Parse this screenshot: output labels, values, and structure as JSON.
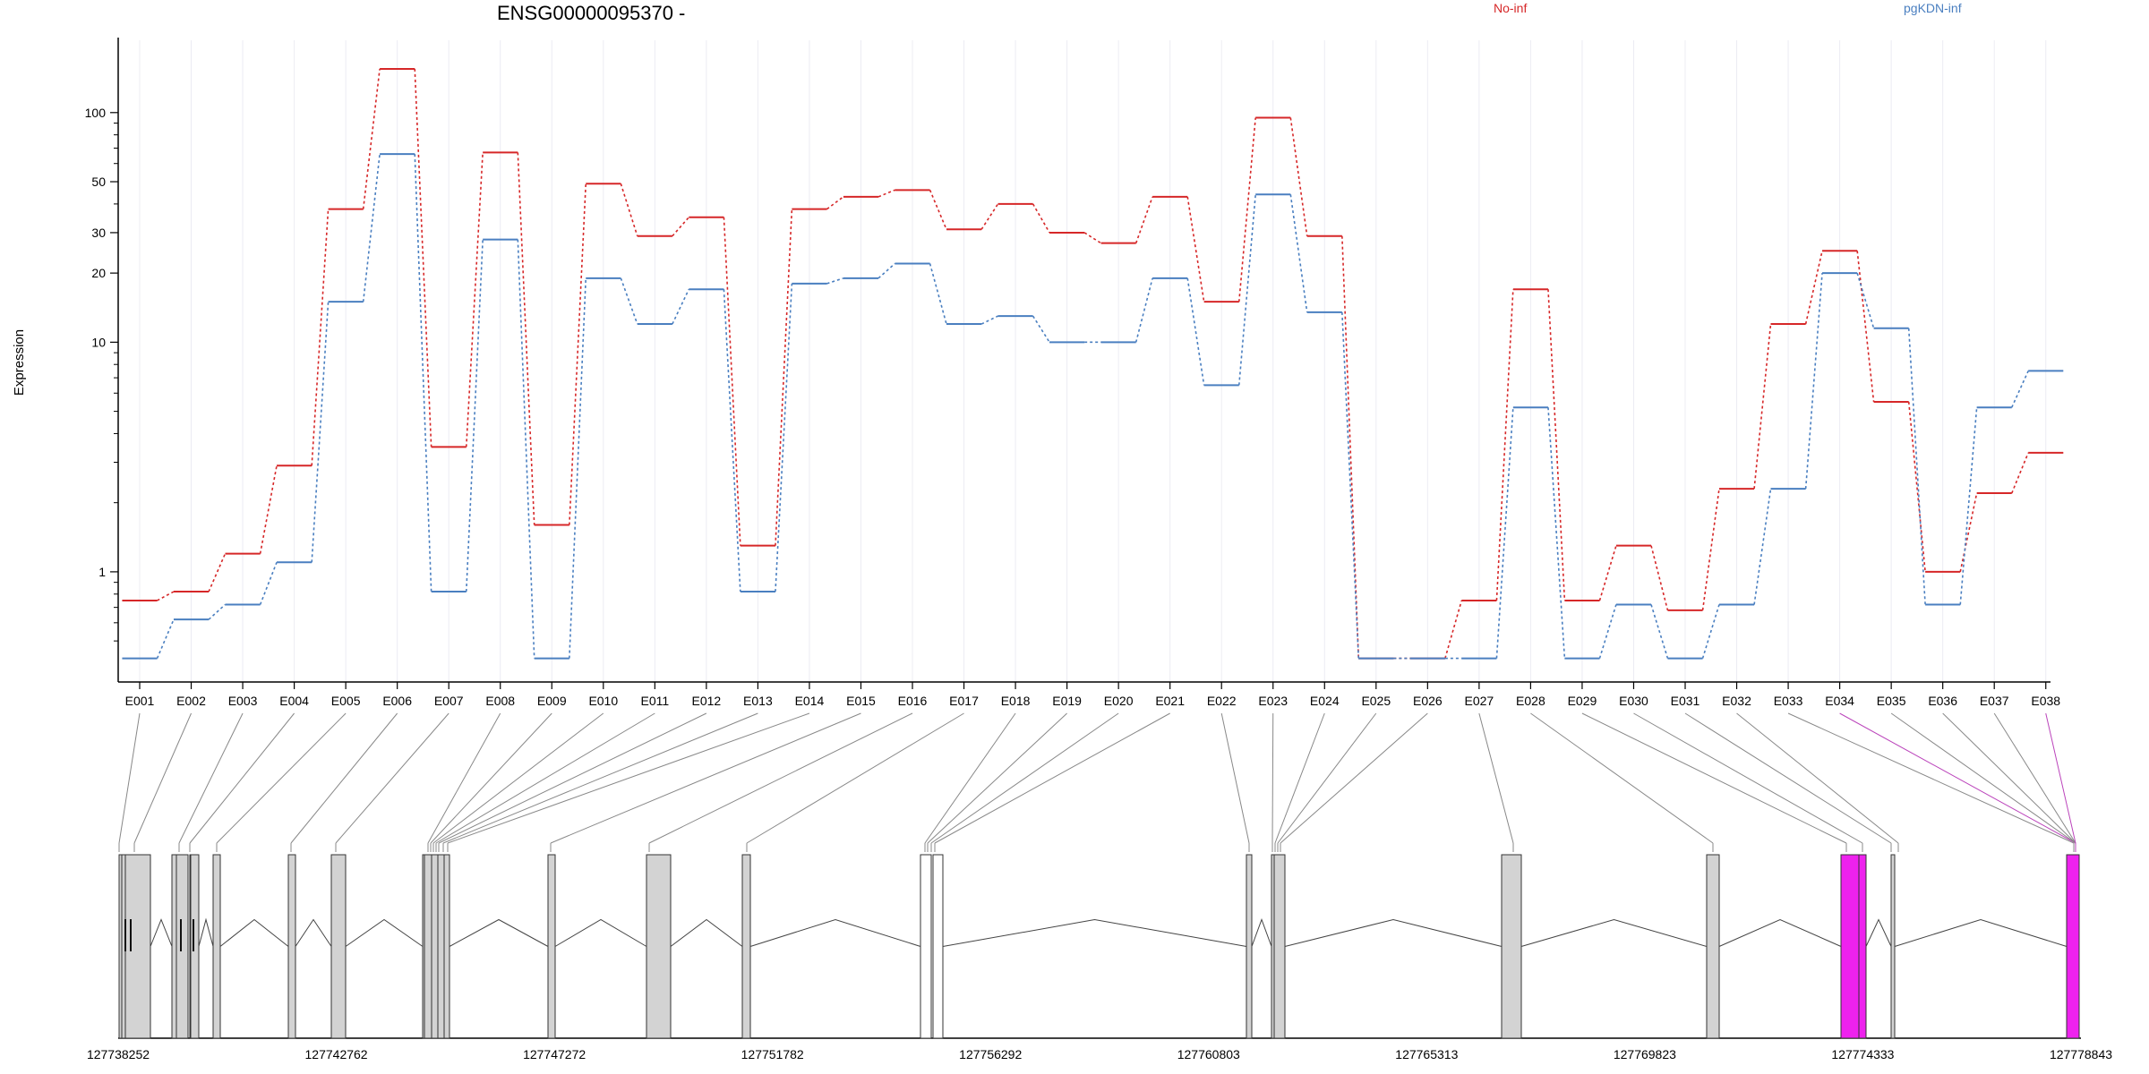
{
  "chart_data": {
    "type": "line",
    "title": "ENSG00000095370 -",
    "ylabel": "Expression",
    "yscale": "log",
    "ylim": [
      0.4,
      165
    ],
    "yticks": [
      1,
      10,
      20,
      30,
      50,
      100
    ],
    "ytick_labels": [
      "1",
      "10",
      "20",
      "30",
      "50",
      "100"
    ],
    "grid": "vertical",
    "legend_placement": "top",
    "categories": [
      "E001",
      "E002",
      "E003",
      "E004",
      "E005",
      "E006",
      "E007",
      "E008",
      "E009",
      "E010",
      "E011",
      "E012",
      "E013",
      "E014",
      "E015",
      "E016",
      "E017",
      "E018",
      "E019",
      "E020",
      "E021",
      "E022",
      "E023",
      "E024",
      "E025",
      "E026",
      "E027",
      "E028",
      "E029",
      "E030",
      "E031",
      "E032",
      "E033",
      "E034",
      "E035",
      "E036",
      "E037",
      "E038"
    ],
    "series": [
      {
        "name": "No-inf",
        "color": "#d62728",
        "values": [
          0.75,
          0.82,
          1.2,
          2.9,
          38,
          155,
          3.5,
          67,
          1.6,
          49,
          29,
          35,
          1.3,
          38,
          43,
          46,
          31,
          40,
          30,
          27,
          43,
          15,
          95,
          29,
          0.42,
          0.42,
          0.75,
          17,
          0.75,
          1.3,
          0.68,
          2.3,
          12,
          25,
          5.5,
          1.0,
          2.2,
          3.3
        ]
      },
      {
        "name": "pgKDN-inf",
        "color": "#4a7fc0",
        "values": [
          0.42,
          0.62,
          0.72,
          1.1,
          15,
          66,
          0.82,
          28,
          0.42,
          19,
          12,
          17,
          0.82,
          18,
          19,
          22,
          12,
          13,
          10,
          10,
          19,
          6.5,
          44,
          13.5,
          0.42,
          0.42,
          0.42,
          5.2,
          0.42,
          0.72,
          0.42,
          0.72,
          2.3,
          20,
          11.5,
          0.72,
          5.2,
          7.5
        ]
      }
    ],
    "gene_model": {
      "axis_ticks": [
        "127738252",
        "127742762",
        "127747272",
        "127751782",
        "127756292",
        "127760803",
        "127765313",
        "127769823",
        "127774333",
        "127778843"
      ],
      "start": 127738252,
      "end": 127778843,
      "exon_colors": {
        "normal": "#d3d3d3",
        "open": "#ffffff",
        "highlight": "#ee22ee"
      },
      "highlighted_exons": [
        "E034",
        "E038"
      ],
      "link_colors": {
        "normal": "#888888",
        "highlight": "#bb44bb"
      }
    }
  }
}
